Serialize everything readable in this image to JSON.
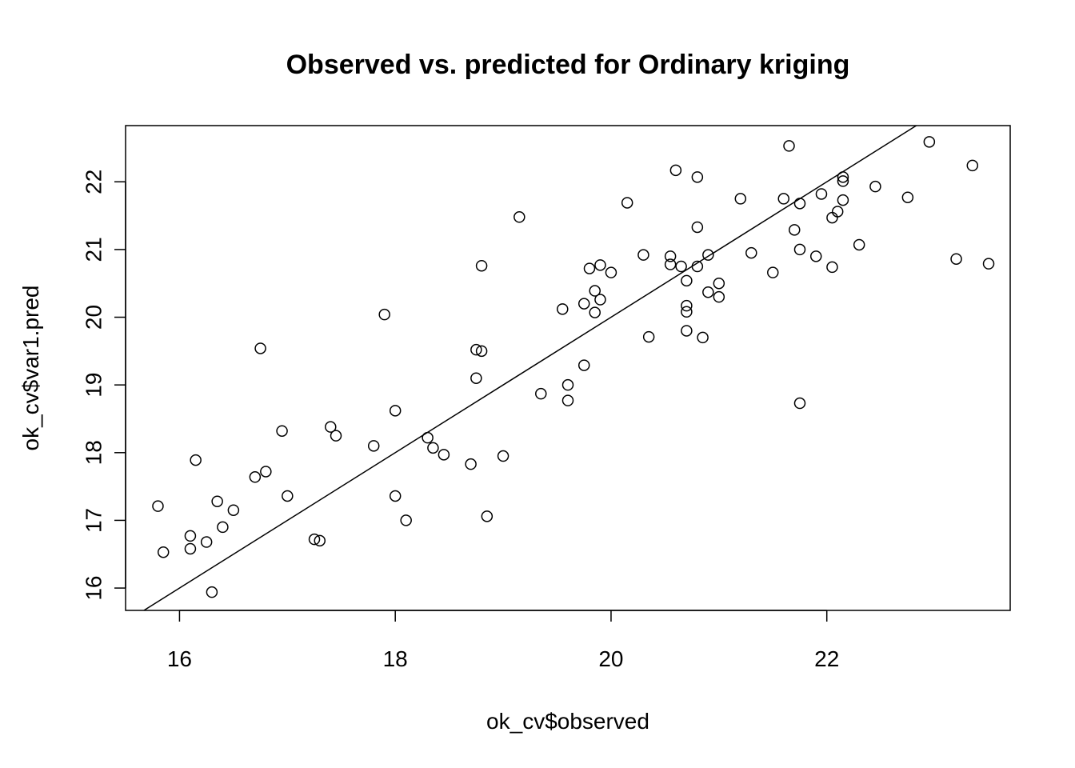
{
  "chart_data": {
    "type": "scatter",
    "title": "Observed vs. predicted for Ordinary kriging",
    "xlabel": "ok_cv$observed",
    "ylabel": "ok_cv$var1.pred",
    "xlim": [
      15.5,
      23.7
    ],
    "ylim": [
      15.67,
      22.83
    ],
    "xticks": [
      16,
      18,
      20,
      22
    ],
    "yticks": [
      16,
      17,
      18,
      19,
      20,
      21,
      22
    ],
    "xtick_labels": [
      "16",
      "18",
      "20",
      "22"
    ],
    "ytick_labels": [
      "16",
      "17",
      "18",
      "19",
      "20",
      "21",
      "22"
    ],
    "grid": false,
    "reference_line": {
      "intercept": 0,
      "slope": 1
    },
    "points": [
      [
        15.8,
        17.21
      ],
      [
        15.85,
        16.53
      ],
      [
        16.1,
        16.77
      ],
      [
        16.1,
        16.58
      ],
      [
        16.15,
        17.89
      ],
      [
        16.25,
        16.68
      ],
      [
        16.3,
        15.94
      ],
      [
        16.35,
        17.28
      ],
      [
        16.4,
        16.9
      ],
      [
        16.5,
        17.15
      ],
      [
        16.7,
        17.64
      ],
      [
        16.75,
        19.54
      ],
      [
        16.8,
        17.72
      ],
      [
        16.95,
        18.32
      ],
      [
        17.0,
        17.36
      ],
      [
        17.25,
        16.72
      ],
      [
        17.3,
        16.7
      ],
      [
        17.4,
        18.38
      ],
      [
        17.45,
        18.25
      ],
      [
        17.8,
        18.1
      ],
      [
        17.9,
        20.04
      ],
      [
        18.0,
        18.62
      ],
      [
        18.0,
        17.36
      ],
      [
        18.1,
        17.0
      ],
      [
        18.3,
        18.22
      ],
      [
        18.35,
        18.07
      ],
      [
        18.45,
        17.97
      ],
      [
        18.7,
        17.83
      ],
      [
        18.75,
        19.52
      ],
      [
        18.75,
        19.1
      ],
      [
        18.8,
        19.5
      ],
      [
        18.8,
        20.76
      ],
      [
        18.85,
        17.06
      ],
      [
        19.0,
        17.95
      ],
      [
        19.15,
        21.48
      ],
      [
        19.35,
        18.87
      ],
      [
        19.55,
        20.12
      ],
      [
        19.6,
        19.0
      ],
      [
        19.6,
        18.77
      ],
      [
        19.75,
        20.2
      ],
      [
        19.75,
        19.29
      ],
      [
        19.8,
        20.72
      ],
      [
        19.85,
        20.39
      ],
      [
        19.85,
        20.07
      ],
      [
        19.9,
        20.26
      ],
      [
        19.9,
        20.77
      ],
      [
        20.0,
        20.66
      ],
      [
        20.15,
        21.69
      ],
      [
        20.3,
        20.92
      ],
      [
        20.35,
        19.71
      ],
      [
        20.55,
        20.9
      ],
      [
        20.55,
        20.78
      ],
      [
        20.6,
        22.17
      ],
      [
        20.65,
        20.75
      ],
      [
        20.7,
        20.54
      ],
      [
        20.7,
        20.17
      ],
      [
        20.7,
        20.08
      ],
      [
        20.7,
        19.8
      ],
      [
        20.8,
        22.07
      ],
      [
        20.8,
        21.33
      ],
      [
        20.8,
        20.75
      ],
      [
        20.85,
        19.7
      ],
      [
        20.9,
        20.92
      ],
      [
        20.9,
        20.37
      ],
      [
        21.0,
        20.5
      ],
      [
        21.0,
        20.3
      ],
      [
        21.2,
        21.75
      ],
      [
        21.3,
        20.95
      ],
      [
        21.5,
        20.66
      ],
      [
        21.6,
        21.75
      ],
      [
        21.65,
        22.53
      ],
      [
        21.7,
        21.29
      ],
      [
        21.75,
        21.68
      ],
      [
        21.75,
        21.0
      ],
      [
        21.75,
        18.73
      ],
      [
        21.9,
        20.9
      ],
      [
        21.95,
        21.82
      ],
      [
        22.05,
        21.47
      ],
      [
        22.05,
        20.74
      ],
      [
        22.1,
        21.56
      ],
      [
        22.15,
        22.07
      ],
      [
        22.15,
        22.01
      ],
      [
        22.15,
        21.73
      ],
      [
        22.3,
        21.07
      ],
      [
        22.45,
        21.93
      ],
      [
        22.75,
        21.77
      ],
      [
        22.95,
        22.59
      ],
      [
        23.2,
        20.86
      ],
      [
        23.35,
        22.24
      ],
      [
        23.5,
        20.79
      ]
    ]
  }
}
